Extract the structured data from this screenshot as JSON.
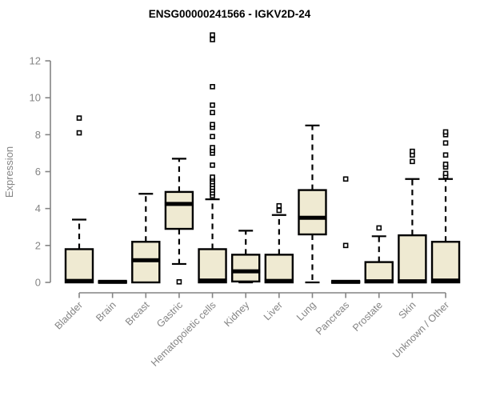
{
  "chart_data": {
    "type": "boxplot",
    "title": "ENSG00000241566 - IGKV2D-24",
    "ylabel": "Expression",
    "xlabel": "",
    "yticks": [
      0,
      2,
      4,
      6,
      8,
      10,
      12
    ],
    "ylim": [
      0,
      13.8
    ],
    "grid": false,
    "legend": "none",
    "categories": [
      "Bladder",
      "Brain",
      "Breast",
      "Gastric",
      "Hematopoietic cells",
      "Kidney",
      "Liver",
      "Lung",
      "Pancreas",
      "Prostate",
      "Skin",
      "Unknown / Other"
    ],
    "boxes": [
      {
        "category": "Bladder",
        "whisker_low": 0,
        "q1": 0,
        "median": 0.08,
        "q3": 1.8,
        "whisker_high": 3.4,
        "outliers": [
          8.1,
          8.9
        ]
      },
      {
        "category": "Brain",
        "whisker_low": 0,
        "q1": 0,
        "median": 0.03,
        "q3": 0.05,
        "whisker_high": 0.05,
        "outliers": []
      },
      {
        "category": "Breast",
        "whisker_low": 0,
        "q1": 0,
        "median": 1.2,
        "q3": 2.2,
        "whisker_high": 4.8,
        "outliers": []
      },
      {
        "category": "Gastric",
        "whisker_low": 1.0,
        "q1": 2.9,
        "median": 4.25,
        "q3": 4.9,
        "whisker_high": 6.7,
        "outliers": [
          0.03
        ]
      },
      {
        "category": "Hematopoietic cells",
        "whisker_low": 0,
        "q1": 0,
        "median": 0.1,
        "q3": 1.8,
        "whisker_high": 4.5,
        "outliers": [
          4.7,
          4.85,
          5.0,
          5.15,
          5.3,
          5.45,
          5.6,
          5.7,
          6.35,
          7.0,
          7.15,
          7.3,
          7.9,
          8.4,
          8.55,
          9.2,
          9.6,
          10.6,
          13.15,
          13.4
        ]
      },
      {
        "category": "Kidney",
        "whisker_low": 0,
        "q1": 0.05,
        "median": 0.6,
        "q3": 1.5,
        "whisker_high": 2.8,
        "outliers": []
      },
      {
        "category": "Liver",
        "whisker_low": 0,
        "q1": 0,
        "median": 0.08,
        "q3": 1.5,
        "whisker_high": 3.65,
        "outliers": [
          3.9,
          4.15
        ]
      },
      {
        "category": "Lung",
        "whisker_low": 0,
        "q1": 2.6,
        "median": 3.5,
        "q3": 5.0,
        "whisker_high": 8.5,
        "outliers": []
      },
      {
        "category": "Pancreas",
        "whisker_low": 0,
        "q1": 0,
        "median": 0.03,
        "q3": 0.05,
        "whisker_high": 0.05,
        "outliers": [
          2.0,
          5.6
        ]
      },
      {
        "category": "Prostate",
        "whisker_low": 0,
        "q1": 0,
        "median": 0.06,
        "q3": 1.1,
        "whisker_high": 2.5,
        "outliers": [
          2.95
        ]
      },
      {
        "category": "Skin",
        "whisker_low": 0,
        "q1": 0,
        "median": 0.06,
        "q3": 2.55,
        "whisker_high": 5.6,
        "outliers": [
          6.55,
          6.9,
          7.1
        ]
      },
      {
        "category": "Unknown / Other",
        "whisker_low": 0,
        "q1": 0,
        "median": 0.1,
        "q3": 2.2,
        "whisker_high": 5.6,
        "outliers": [
          5.75,
          5.9,
          6.25,
          6.4,
          6.9,
          7.55,
          8.0,
          8.15
        ]
      }
    ],
    "colors": {
      "box_fill": "#efead2",
      "box_stroke": "#000000",
      "median": "#000000",
      "whisker": "#000000",
      "axis": "#848484",
      "tick_label": "#848484",
      "title_color": "#000000",
      "background": "#ffffff"
    }
  }
}
